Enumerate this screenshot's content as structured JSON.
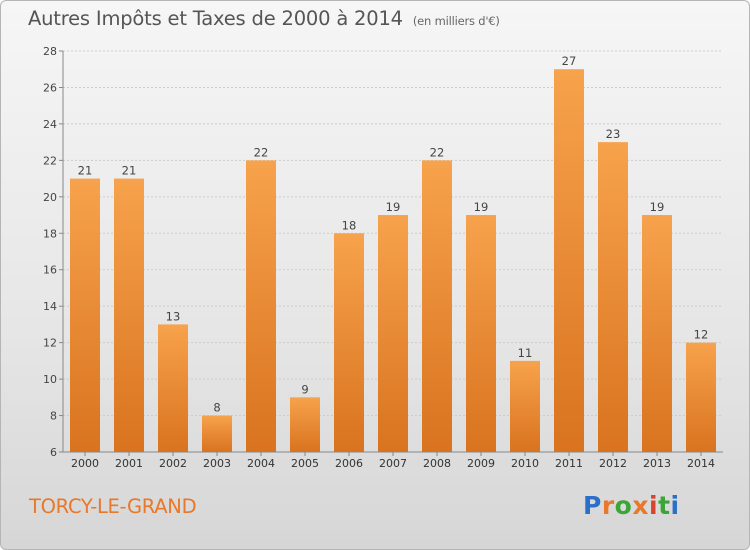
{
  "title": "Autres Impôts et Taxes de 2000 à 2014",
  "subtitle": "(en milliers d'€)",
  "commune": "TORCY-LE-GRAND",
  "brand": {
    "letters": [
      "P",
      "r",
      "o",
      "x",
      "i",
      "t",
      "i"
    ],
    "colors": [
      "#2a6fc9",
      "#e8782a",
      "#3aa635",
      "#e8782a",
      "#d6432f",
      "#3aa635",
      "#2a6fc9"
    ]
  },
  "colors": {
    "bar": "#f0943c",
    "title": "#555555",
    "commune": "#e8782a",
    "grid": "#cccccc"
  },
  "chart_data": {
    "type": "bar",
    "categories": [
      "2000",
      "2001",
      "2002",
      "2003",
      "2004",
      "2005",
      "2006",
      "2007",
      "2008",
      "2009",
      "2010",
      "2011",
      "2012",
      "2013",
      "2014"
    ],
    "values": [
      21,
      21,
      13,
      8,
      22,
      9,
      18,
      19,
      22,
      19,
      11,
      27,
      23,
      19,
      12
    ],
    "ylim": [
      6,
      28
    ],
    "yticks": [
      6,
      8,
      10,
      12,
      14,
      16,
      18,
      20,
      22,
      24,
      26,
      28
    ],
    "grid": true,
    "legend": "none"
  }
}
